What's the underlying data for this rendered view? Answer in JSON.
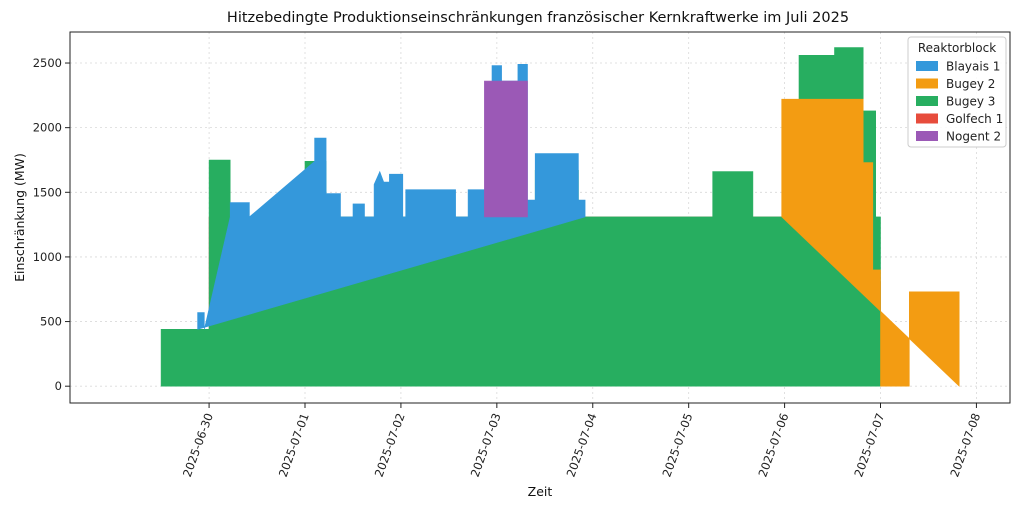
{
  "chart_data": {
    "type": "area",
    "title": "Hitzebedingte Produktionseinschränkungen französischer Kernkraftwerke im Juli 2025",
    "xlabel": "Zeit",
    "ylabel": "Einschränkung (MW)",
    "x_tick_labels": [
      "2025-06-30",
      "2025-07-01",
      "2025-07-02",
      "2025-07-03",
      "2025-07-04",
      "2025-07-05",
      "2025-07-06",
      "2025-07-07",
      "2025-07-08"
    ],
    "y_ticks": [
      0,
      500,
      1000,
      1500,
      2000,
      2500
    ],
    "ylim": [
      -130,
      2740
    ],
    "xlim_days": [
      -1.45,
      8.35
    ],
    "x_unit": "days since 2025-06-30 00:00",
    "grid": true,
    "legend": {
      "title": "Reaktorblock",
      "position": "top-right"
    },
    "stacked": true,
    "series": [
      {
        "name": "Golfech 1",
        "color": "#e74c3c",
        "points": [
          [
            0.0,
            0
          ],
          [
            0.0,
            1310
          ],
          [
            0.0,
            1310
          ],
          [
            6.85,
            1310
          ],
          [
            6.85,
            810
          ],
          [
            7.0,
            810
          ],
          [
            7.0,
            0
          ]
        ]
      },
      {
        "name": "Bugey 3",
        "color": "#27ae60",
        "points": [
          [
            -0.5,
            0
          ],
          [
            -0.5,
            440
          ],
          [
            -0.05,
            440
          ],
          [
            0.0,
            440
          ],
          [
            0.0,
            1750
          ],
          [
            0.22,
            1750
          ],
          [
            0.22,
            1310
          ],
          [
            1.0,
            1310
          ],
          [
            1.0,
            1740
          ],
          [
            1.22,
            1740
          ],
          [
            1.22,
            1310
          ],
          [
            3.4,
            1310
          ],
          [
            3.4,
            1670
          ],
          [
            3.85,
            1670
          ],
          [
            3.85,
            1310
          ],
          [
            5.25,
            1310
          ],
          [
            5.25,
            1660
          ],
          [
            5.67,
            1660
          ],
          [
            5.67,
            1310
          ],
          [
            6.15,
            1310
          ],
          [
            6.15,
            2560
          ],
          [
            6.52,
            2560
          ],
          [
            6.52,
            2620
          ],
          [
            6.82,
            2620
          ],
          [
            6.82,
            2130
          ],
          [
            6.95,
            2130
          ],
          [
            6.95,
            1310
          ],
          [
            7.0,
            1310
          ],
          [
            7.0,
            910
          ],
          [
            7.0,
            0
          ]
        ]
      },
      {
        "name": "Blayais 1",
        "color": "#3498db",
        "points": [
          [
            -0.12,
            440
          ],
          [
            -0.12,
            570
          ],
          [
            -0.05,
            570
          ],
          [
            -0.05,
            440
          ],
          [
            0.22,
            1310
          ],
          [
            0.22,
            1420
          ],
          [
            0.42,
            1420
          ],
          [
            0.42,
            1310
          ],
          [
            1.1,
            1740
          ],
          [
            1.1,
            1920
          ],
          [
            1.22,
            1920
          ],
          [
            1.22,
            1490
          ],
          [
            1.37,
            1490
          ],
          [
            1.37,
            1310
          ],
          [
            1.5,
            1310
          ],
          [
            1.5,
            1410
          ],
          [
            1.62,
            1410
          ],
          [
            1.62,
            1310
          ],
          [
            1.72,
            1310
          ],
          [
            1.72,
            1560
          ],
          [
            1.78,
            1660
          ],
          [
            1.82,
            1580
          ],
          [
            1.88,
            1580
          ],
          [
            1.88,
            1640
          ],
          [
            2.02,
            1640
          ],
          [
            2.02,
            1310
          ],
          [
            2.05,
            1310
          ],
          [
            2.05,
            1520
          ],
          [
            2.57,
            1520
          ],
          [
            2.57,
            1310
          ],
          [
            2.7,
            1310
          ],
          [
            2.7,
            1520
          ],
          [
            2.87,
            1520
          ],
          [
            2.87,
            1310
          ],
          [
            2.95,
            2360
          ],
          [
            2.95,
            2480
          ],
          [
            3.05,
            2480
          ],
          [
            3.05,
            2360
          ],
          [
            3.22,
            2360
          ],
          [
            3.22,
            2490
          ],
          [
            3.32,
            2490
          ],
          [
            3.32,
            1440
          ],
          [
            3.4,
            1440
          ],
          [
            3.4,
            1800
          ],
          [
            3.85,
            1800
          ],
          [
            3.85,
            1440
          ],
          [
            3.92,
            1440
          ],
          [
            3.92,
            1310
          ]
        ]
      },
      {
        "name": "Nogent 2",
        "color": "#9b59b6",
        "points": [
          [
            2.87,
            1310
          ],
          [
            2.87,
            2360
          ],
          [
            3.32,
            2360
          ],
          [
            3.32,
            1310
          ]
        ]
      },
      {
        "name": "Bugey 2",
        "color": "#f39c12",
        "points": [
          [
            5.97,
            1310
          ],
          [
            5.97,
            2220
          ],
          [
            6.82,
            2220
          ],
          [
            6.82,
            1730
          ],
          [
            6.92,
            1730
          ],
          [
            6.92,
            900
          ],
          [
            7.0,
            900
          ],
          [
            7.0,
            0
          ],
          [
            7.3,
            0
          ],
          [
            7.3,
            730
          ],
          [
            7.82,
            730
          ],
          [
            7.82,
            0
          ]
        ]
      }
    ]
  }
}
